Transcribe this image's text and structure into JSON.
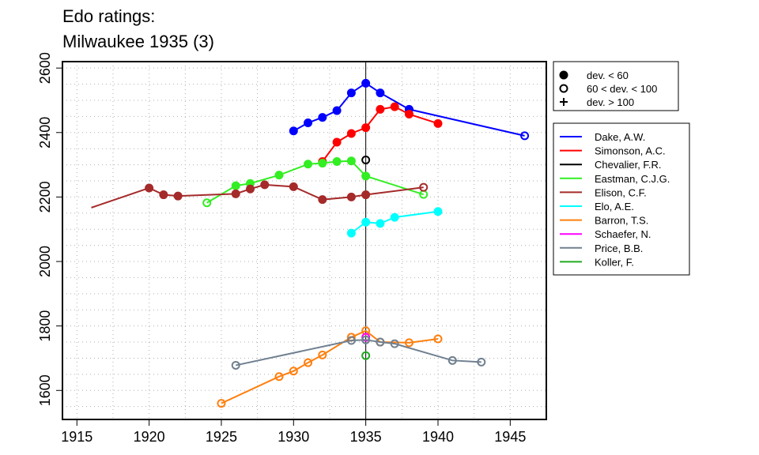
{
  "chart_data": {
    "type": "line",
    "title": [
      "Edo ratings:",
      "Milwaukee 1935 (3)"
    ],
    "xlabel": "",
    "ylabel": "",
    "xlim": [
      1914,
      1947.5
    ],
    "ylim": [
      1510,
      2620
    ],
    "xticks": [
      1915,
      1920,
      1925,
      1930,
      1935,
      1940,
      1945
    ],
    "yticks": [
      1600,
      1800,
      2000,
      2200,
      2400,
      2600
    ],
    "grid": true,
    "reference_line_x": 1935,
    "marker_legend": {
      "placement": "top-right",
      "entries": [
        {
          "symbol": "filled-circle",
          "label": "dev. < 60"
        },
        {
          "symbol": "open-circle",
          "label": "60 < dev. < 100"
        },
        {
          "symbol": "plus",
          "label": "dev. > 100"
        }
      ]
    },
    "series_legend_placement": "right",
    "series": [
      {
        "name": "Dake, A.W.",
        "color": "#0000ff",
        "points": [
          [
            1930,
            2405,
            "f"
          ],
          [
            1931,
            2430,
            "f"
          ],
          [
            1932,
            2447,
            "f"
          ],
          [
            1933,
            2468,
            "f"
          ],
          [
            1934,
            2523,
            "f"
          ],
          [
            1935,
            2553,
            "f"
          ],
          [
            1936,
            2523,
            "f"
          ],
          [
            1938,
            2472,
            "f"
          ],
          [
            1946,
            2390,
            "o"
          ]
        ]
      },
      {
        "name": "Simonson, A.C.",
        "color": "#ff0000",
        "points": [
          [
            1932,
            2310,
            "f"
          ],
          [
            1933,
            2370,
            "f"
          ],
          [
            1934,
            2397,
            "f"
          ],
          [
            1935,
            2415,
            "f"
          ],
          [
            1936,
            2472,
            "f"
          ],
          [
            1937,
            2480,
            "f"
          ],
          [
            1938,
            2457,
            "f"
          ],
          [
            1940,
            2428,
            "f"
          ]
        ]
      },
      {
        "name": "Chevalier, F.R.",
        "color": "#000000",
        "points": [
          [
            1935,
            2315,
            "o"
          ]
        ]
      },
      {
        "name": "Eastman, C.J.G.",
        "color": "#33ee22",
        "points": [
          [
            1924,
            2182,
            "o"
          ],
          [
            1926,
            2235,
            "f"
          ],
          [
            1927,
            2242,
            "f"
          ],
          [
            1929,
            2268,
            "f"
          ],
          [
            1931,
            2302,
            "f"
          ],
          [
            1932,
            2305,
            "f"
          ],
          [
            1933,
            2310,
            "f"
          ],
          [
            1934,
            2312,
            "f"
          ],
          [
            1935,
            2265,
            "f"
          ],
          [
            1939,
            2208,
            "o"
          ]
        ]
      },
      {
        "name": "Elison, C.F.",
        "color": "#a52a2a",
        "points": [
          [
            1916,
            2167,
            "n"
          ],
          [
            1920,
            2228,
            "f"
          ],
          [
            1921,
            2207,
            "f"
          ],
          [
            1922,
            2203,
            "f"
          ],
          [
            1926,
            2210,
            "f"
          ],
          [
            1927,
            2225,
            "f"
          ],
          [
            1928,
            2238,
            "f"
          ],
          [
            1930,
            2232,
            "f"
          ],
          [
            1932,
            2192,
            "f"
          ],
          [
            1934,
            2200,
            "f"
          ],
          [
            1935,
            2207,
            "f"
          ],
          [
            1939,
            2230,
            "o"
          ]
        ]
      },
      {
        "name": "Elo, A.E.",
        "color": "#00ffff",
        "points": [
          [
            1934,
            2088,
            "f"
          ],
          [
            1935,
            2122,
            "f"
          ],
          [
            1936,
            2118,
            "f"
          ],
          [
            1937,
            2137,
            "f"
          ],
          [
            1940,
            2155,
            "f"
          ]
        ]
      },
      {
        "name": "Barron, T.S.",
        "color": "#ff7f0e",
        "points": [
          [
            1925,
            1560,
            "o"
          ],
          [
            1929,
            1643,
            "o"
          ],
          [
            1930,
            1660,
            "o"
          ],
          [
            1931,
            1686,
            "o"
          ],
          [
            1932,
            1710,
            "o"
          ],
          [
            1934,
            1765,
            "o"
          ],
          [
            1935,
            1785,
            "o"
          ],
          [
            1936,
            1750,
            "o"
          ],
          [
            1938,
            1748,
            "o"
          ],
          [
            1940,
            1760,
            "o"
          ]
        ]
      },
      {
        "name": "Schaefer, N.",
        "color": "#ff00ff",
        "points": [
          [
            1935,
            1765,
            "o"
          ]
        ]
      },
      {
        "name": "Price, B.B.",
        "color": "#708090",
        "points": [
          [
            1926,
            1678,
            "o"
          ],
          [
            1934,
            1755,
            "o"
          ],
          [
            1935,
            1757,
            "o"
          ],
          [
            1936,
            1750,
            "o"
          ],
          [
            1937,
            1745,
            "o"
          ],
          [
            1941,
            1693,
            "o"
          ],
          [
            1943,
            1688,
            "o"
          ]
        ]
      },
      {
        "name": "Koller, F.",
        "color": "#22aa22",
        "points": [
          [
            1935,
            1708,
            "o"
          ]
        ]
      }
    ]
  }
}
